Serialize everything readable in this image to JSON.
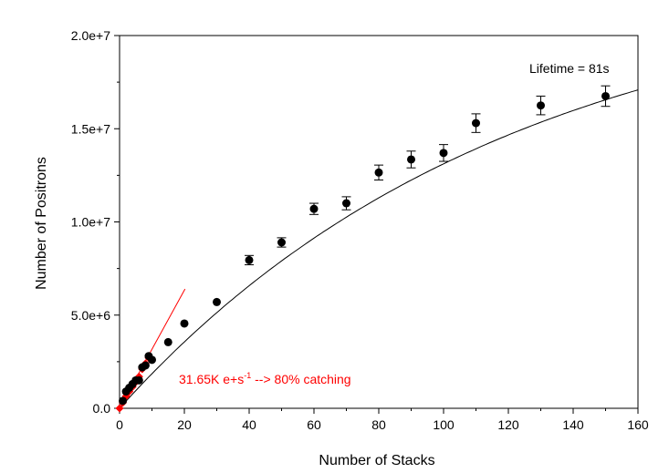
{
  "chart_data": {
    "type": "scatter",
    "title": "",
    "xlabel": "Number of Stacks",
    "ylabel": "Number of Positrons",
    "xlim": [
      0,
      160
    ],
    "ylim": [
      0,
      20000000
    ],
    "x_ticks": [
      0,
      20,
      40,
      60,
      80,
      100,
      120,
      140,
      160
    ],
    "x_tick_labels": [
      "0",
      "20",
      "40",
      "60",
      "80",
      "100",
      "120",
      "140",
      "160"
    ],
    "y_ticks": [
      0,
      5000000,
      10000000,
      15000000,
      20000000
    ],
    "y_tick_labels": [
      "0.0",
      "5.0e+6",
      "1.0e+7",
      "1.5e+7",
      "2.0e+7"
    ],
    "grid": false,
    "series": [
      {
        "marker": "circle",
        "color": "#000000",
        "x": [
          1,
          2,
          3,
          4,
          5,
          6,
          7,
          8,
          9,
          10,
          15,
          20,
          30,
          40,
          50,
          60,
          70,
          80,
          90,
          100,
          110,
          130,
          150
        ],
        "y": [
          400000,
          900000,
          1100000,
          1300000,
          1500000,
          1500000,
          2200000,
          2300000,
          2800000,
          2600000,
          3550000,
          4550000,
          5700000,
          7950000,
          8900000,
          10700000,
          11000000,
          12650000,
          13350000,
          13700000,
          15300000,
          16250000,
          16750000
        ],
        "err": [
          100000,
          100000,
          100000,
          100000,
          100000,
          100000,
          100000,
          150000,
          150000,
          150000,
          150000,
          200000,
          200000,
          250000,
          250000,
          300000,
          350000,
          400000,
          450000,
          450000,
          500000,
          500000,
          550000
        ]
      },
      {
        "marker": "diamond",
        "color": "#ff0000",
        "x": [
          0,
          1,
          2,
          3,
          4,
          5,
          6,
          7,
          8,
          9
        ],
        "y": [
          0,
          300000,
          650000,
          900000,
          1150000,
          1400000,
          1700000,
          2100000,
          2400000,
          2700000
        ]
      }
    ],
    "fit_curve": {
      "color": "#000000",
      "lifetime_s": 81
    },
    "initial_rate_line": {
      "color": "#ff0000",
      "x": [
        0,
        20.2
      ],
      "y": [
        0,
        6400000
      ]
    },
    "annotations": [
      {
        "text": "Lifetime = 81s",
        "color": "#000000"
      },
      {
        "text_main": "31.65K e+s",
        "text_sup": "-1",
        "text_tail": " --> 80% catching",
        "color": "#ff0000"
      }
    ]
  }
}
